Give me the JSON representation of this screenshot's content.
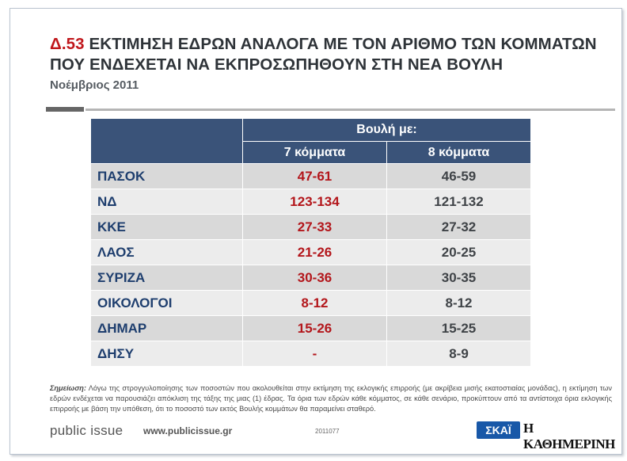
{
  "header": {
    "code": "Δ.53",
    "title_line1": "ΕΚΤΙΜΗΣΗ ΕΔΡΩΝ ΑΝΑΛΟΓΑ ΜΕ ΤΟΝ ΑΡΙΘΜΟ ΤΩΝ ΚΟΜΜΑΤΩΝ",
    "title_line2": "ΠΟΥ ΕΝΔΕΧΕΤΑΙ ΝΑ ΕΚΠΡΟΣΩΠΗΘΟΥΝ ΣΤΗ ΝΕΑ ΒΟΥΛΗ",
    "subtitle": "Νοέμβριος 2011"
  },
  "table": {
    "group_header": "Βουλή με:",
    "columns": [
      "7 κόμματα",
      "8 κόμματα"
    ],
    "rows": [
      {
        "party": "ΠΑΣΟΚ",
        "seven": "47-61",
        "eight": "46-59"
      },
      {
        "party": "ΝΔ",
        "seven": "123-134",
        "eight": "121-132"
      },
      {
        "party": "ΚΚΕ",
        "seven": "27-33",
        "eight": "27-32"
      },
      {
        "party": "ΛΑΟΣ",
        "seven": "21-26",
        "eight": "20-25"
      },
      {
        "party": "ΣΥΡΙΖΑ",
        "seven": "30-36",
        "eight": "30-35"
      },
      {
        "party": "ΟΙΚΟΛΟΓΟΙ",
        "seven": "8-12",
        "eight": "8-12"
      },
      {
        "party": "ΔΗΜΑΡ",
        "seven": "15-26",
        "eight": "15-25"
      },
      {
        "party": "ΔΗΣΥ",
        "seven": "-",
        "eight": "8-9"
      }
    ]
  },
  "note": {
    "label": "Σημείωση:",
    "text": "Λόγω της στρογγυλοποίησης των ποσοστών που ακολουθείται στην εκτίμηση της εκλογικής επιρροής (με ακρίβεια μισής εκατοστιαίας μονάδας), η εκτίμηση των εδρών ενδέχεται να παρουσιάζει απόκλιση της τάξης της μιας (1) έδρας. Τα όρια των εδρών κάθε κόμματος, σε κάθε σενάριο, προκύπτουν από τα αντίστοιχα όρια εκλογικής επιρροής με βάση την υπόθεση, ότι το ποσοστό των εκτός Βουλής κομμάτων θα παραμείνει σταθερό."
  },
  "footer": {
    "brand": "public issue",
    "url": "www.publicissue.gr",
    "code": "2011077",
    "logo_skai": "ΣΚΑΪ",
    "logo_kathimerini": "Η ΚΑΘΗΜΕΡΙΝΗ"
  },
  "colors": {
    "title_code": "#c0161b",
    "table_header": "#3a5379",
    "party_text": "#1e3e6e",
    "seven_parties_text": "#b3161b",
    "row_band_dark": "#d9d9d9",
    "row_band_light": "#ececec"
  }
}
